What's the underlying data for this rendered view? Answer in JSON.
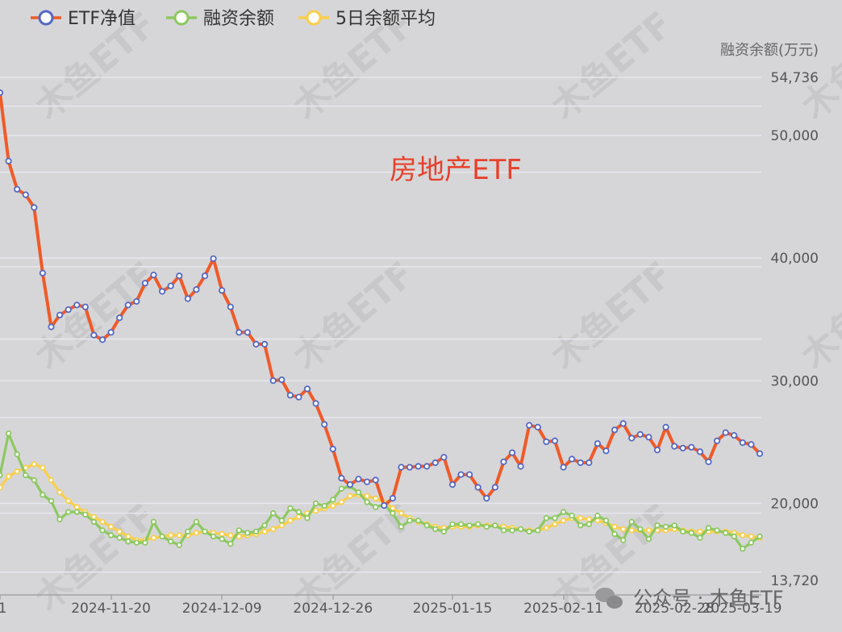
{
  "chart_data": {
    "type": "line",
    "title": "房地产ETF",
    "ylabel": "融资余额(万元)",
    "ylim": [
      13720,
      54736
    ],
    "y_ticks": [
      "54,736",
      "50,000",
      "40,000",
      "30,000",
      "20,000",
      "13,720"
    ],
    "x_ticks": [
      "2024-11-20",
      "2024-12-09",
      "2024-12-26",
      "2025-01-15",
      "2025-02-11",
      "2025-02-28",
      "2025-03-19"
    ],
    "x_tick_left_partial": "1",
    "legend": {
      "position": "top-left"
    },
    "series": [
      {
        "name": "ETF净值",
        "color": "#f05a28",
        "marker_color": "#5468c6",
        "scale": "left-unlabeled",
        "values": [
          1.466,
          1.391,
          1.36,
          1.354,
          1.34,
          1.268,
          1.209,
          1.222,
          1.228,
          1.233,
          1.231,
          1.2,
          1.195,
          1.203,
          1.219,
          1.233,
          1.237,
          1.257,
          1.266,
          1.248,
          1.254,
          1.265,
          1.24,
          1.25,
          1.265,
          1.284,
          1.249,
          1.231,
          1.203,
          1.203,
          1.19,
          1.19,
          1.15,
          1.151,
          1.134,
          1.132,
          1.141,
          1.125,
          1.102,
          1.075,
          1.043,
          1.036,
          1.042,
          1.039,
          1.041,
          1.013,
          1.021,
          1.055,
          1.055,
          1.056,
          1.056,
          1.06,
          1.066,
          1.036,
          1.047,
          1.047,
          1.033,
          1.021,
          1.033,
          1.061,
          1.071,
          1.056,
          1.101,
          1.099,
          1.083,
          1.084,
          1.055,
          1.064,
          1.06,
          1.06,
          1.081,
          1.073,
          1.096,
          1.103,
          1.087,
          1.091,
          1.088,
          1.074,
          1.099,
          1.078,
          1.076,
          1.077,
          1.072,
          1.061,
          1.084,
          1.093,
          1.09,
          1.082,
          1.08,
          1.07
        ]
      },
      {
        "name": "融资余额",
        "color": "#8dc860",
        "values": [
          22300,
          25700,
          24000,
          22300,
          21900,
          20700,
          20200,
          18700,
          19300,
          19300,
          19100,
          18500,
          17800,
          17400,
          17200,
          16900,
          16800,
          16800,
          18500,
          17300,
          16900,
          16600,
          17700,
          18500,
          17700,
          17300,
          17100,
          16700,
          17800,
          17600,
          17700,
          18200,
          19200,
          18600,
          19600,
          19300,
          18800,
          20000,
          19800,
          20300,
          21200,
          21400,
          20900,
          20100,
          19700,
          19900,
          19200,
          18100,
          18600,
          18600,
          18200,
          17900,
          17700,
          18300,
          18300,
          18200,
          18300,
          18100,
          18200,
          17800,
          17800,
          17900,
          17700,
          17800,
          18800,
          18800,
          19300,
          19000,
          18200,
          18300,
          19000,
          18600,
          17500,
          17000,
          18500,
          17900,
          17100,
          18200,
          18100,
          18200,
          17700,
          17600,
          17200,
          18000,
          17800,
          17600,
          17300,
          16300,
          16800,
          17300
        ]
      },
      {
        "name": "5日余额平均",
        "color": "#f8cf4a",
        "values": [
          21300,
          22200,
          22600,
          22900,
          23200,
          22900,
          21900,
          20900,
          20200,
          19700,
          19300,
          18900,
          18500,
          18100,
          17700,
          17300,
          17000,
          17000,
          17200,
          17300,
          17400,
          17400,
          17400,
          17600,
          17700,
          17600,
          17500,
          17400,
          17300,
          17400,
          17500,
          17700,
          17900,
          18200,
          18600,
          18900,
          19200,
          19400,
          19600,
          19800,
          20100,
          20600,
          20700,
          20600,
          20400,
          20100,
          19600,
          19200,
          18800,
          18500,
          18300,
          18100,
          18000,
          18100,
          18100,
          18100,
          18200,
          18200,
          18200,
          18100,
          18000,
          17900,
          17800,
          17800,
          18000,
          18300,
          18600,
          18800,
          18800,
          18700,
          18600,
          18400,
          18100,
          17900,
          17800,
          17800,
          17800,
          17800,
          17800,
          17900,
          17800,
          17700,
          17700,
          17700,
          17700,
          17700,
          17600,
          17400,
          17300,
          17200
        ]
      }
    ],
    "watermark": "木鱼ETF",
    "account_watermark": "公众号 · 木鱼ETF"
  }
}
